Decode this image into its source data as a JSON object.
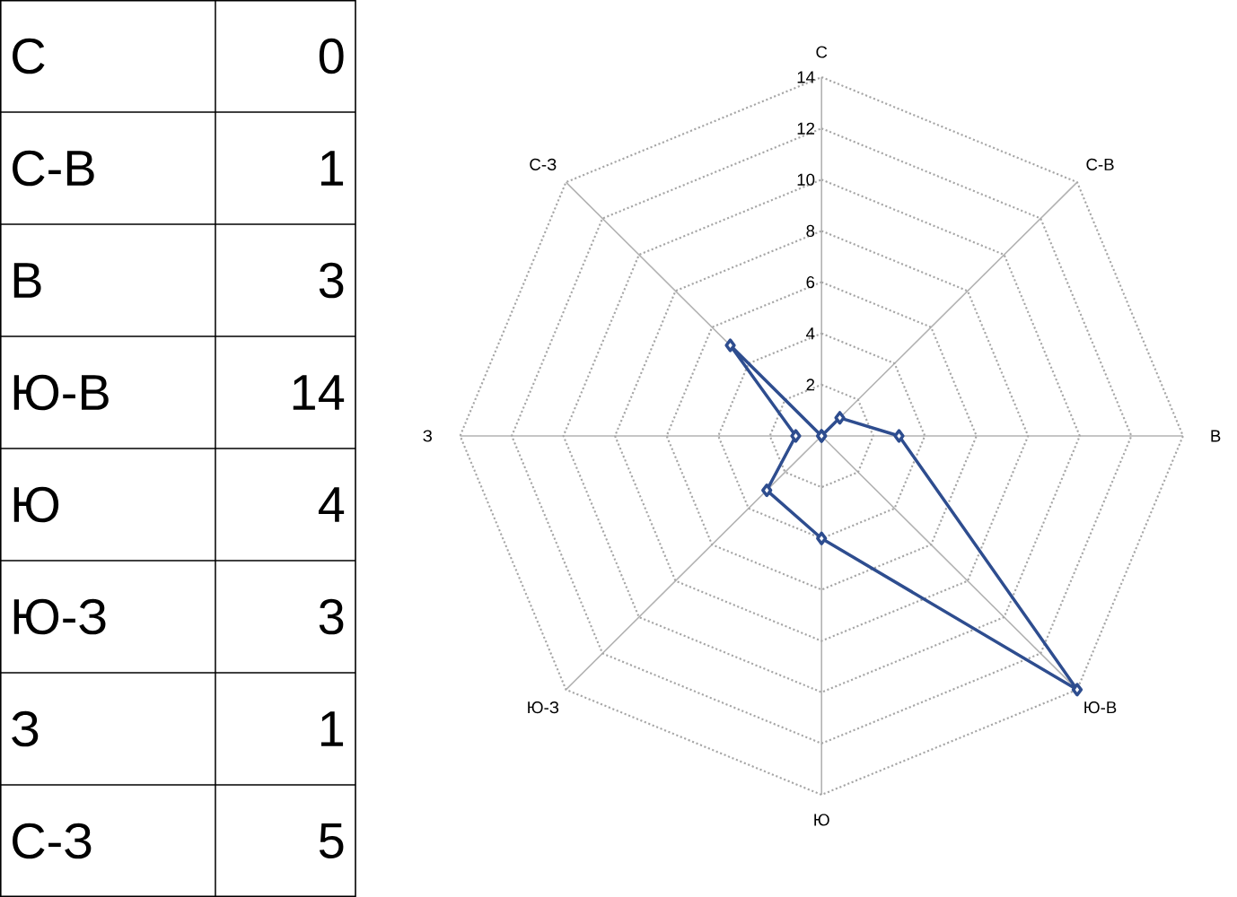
{
  "chart_data": [
    {
      "type": "other",
      "categories": [
        "С",
        "С-В",
        "В",
        "Ю-В",
        "Ю",
        "Ю-З",
        "З",
        "С-З"
      ],
      "value_labels": [
        "0",
        "1",
        "3",
        "14",
        "4",
        "3",
        "1",
        "5"
      ]
    },
    {
      "type": "radar",
      "categories": [
        "С",
        "С-В",
        "В",
        "Ю-В",
        "Ю",
        "Ю-З",
        "З",
        "С-З"
      ],
      "series": [
        {
          "color": "#2e4d8f",
          "values": [
            0,
            1,
            3,
            14,
            4,
            3,
            1,
            5
          ]
        }
      ],
      "ylim": [
        0,
        14
      ],
      "yticks": [
        2,
        4,
        6,
        8,
        10,
        12,
        14
      ],
      "grid": true,
      "marker": "diamond",
      "line_style": "solid"
    }
  ]
}
